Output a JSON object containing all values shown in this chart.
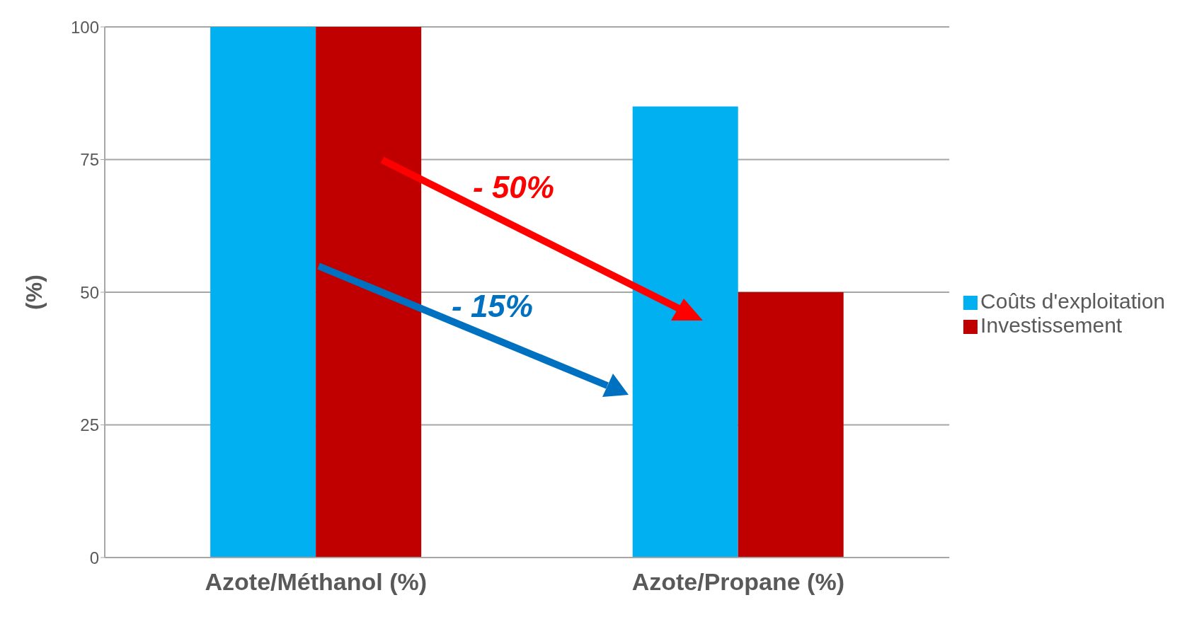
{
  "chart_data": {
    "type": "bar",
    "ylabel": "(%)",
    "categories": [
      "Azote/Méthanol (%)",
      "Azote/Propane (%)"
    ],
    "series": [
      {
        "name": "Coûts d'exploitation",
        "color": "#00b0f0",
        "values": [
          100,
          85
        ]
      },
      {
        "name": "Investissement",
        "color": "#c00000",
        "values": [
          100,
          50
        ]
      }
    ],
    "ylim": [
      0,
      100
    ],
    "yticks": [
      0,
      25,
      50,
      75,
      100
    ],
    "grid": "y",
    "legend": "right",
    "annotations": [
      "- 50%",
      "- 15%"
    ]
  }
}
